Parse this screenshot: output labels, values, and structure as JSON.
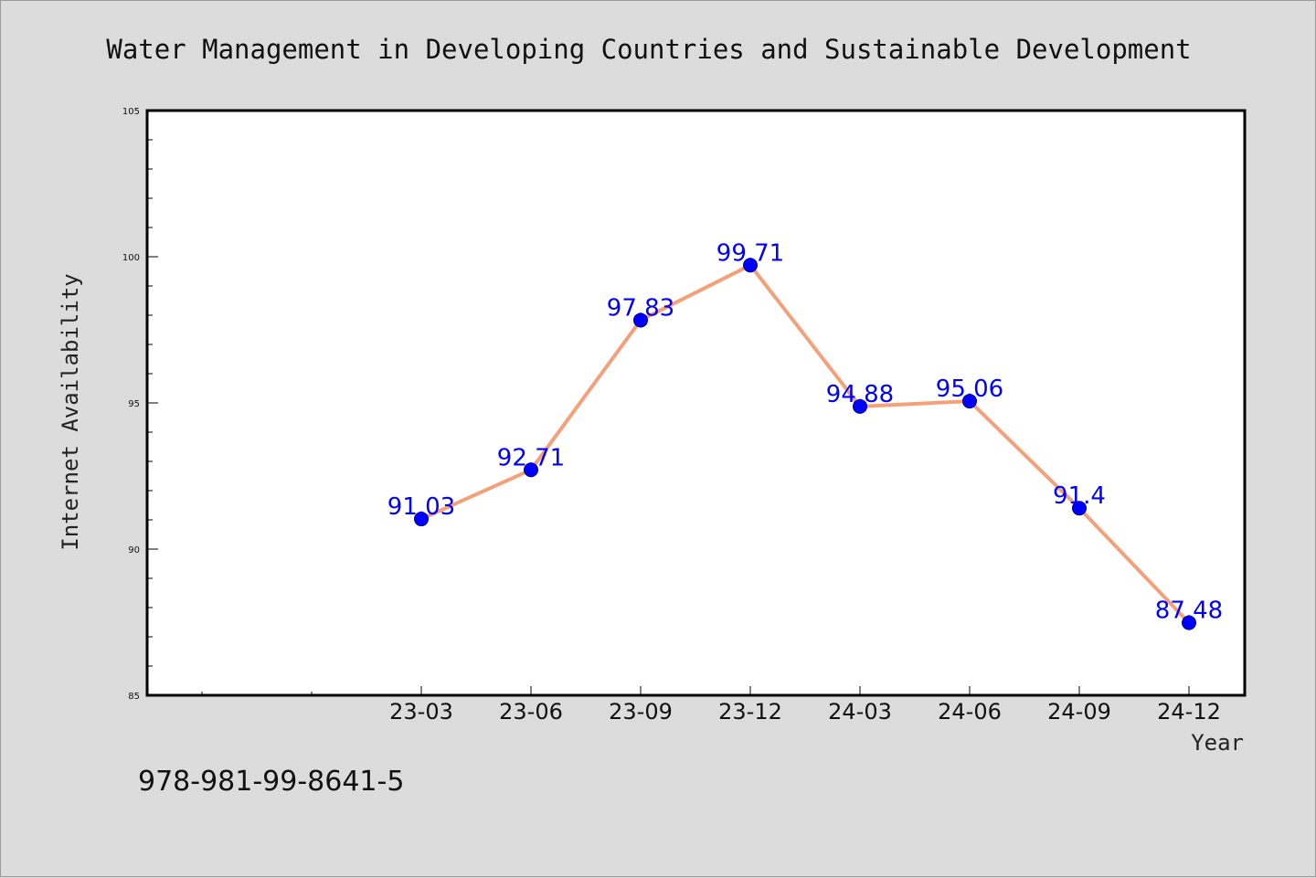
{
  "caption": "978-981-99-8641-5",
  "chart_data": {
    "type": "line",
    "title": "Water Management in Developing Countries and Sustainable Development",
    "xlabel": "Year",
    "ylabel": "Internet Availability",
    "ylim": [
      85,
      105
    ],
    "yticks": [
      85,
      90,
      95,
      100,
      105
    ],
    "categories": [
      "23-03",
      "23-06",
      "23-09",
      "23-12",
      "24-03",
      "24-06",
      "24-09",
      "24-12"
    ],
    "series": [
      {
        "values": [
          91.03,
          92.71,
          97.83,
          99.71,
          94.88,
          95.06,
          91.4,
          87.48
        ],
        "data_labels": [
          "91.03",
          "92.71",
          "97.83",
          "99.71",
          "94.88",
          "95.06",
          "91.4",
          "87.48"
        ]
      }
    ],
    "colors": {
      "line": "#f4a07a",
      "marker": "#0000ff",
      "label": "#0000ff"
    },
    "grid": false
  }
}
